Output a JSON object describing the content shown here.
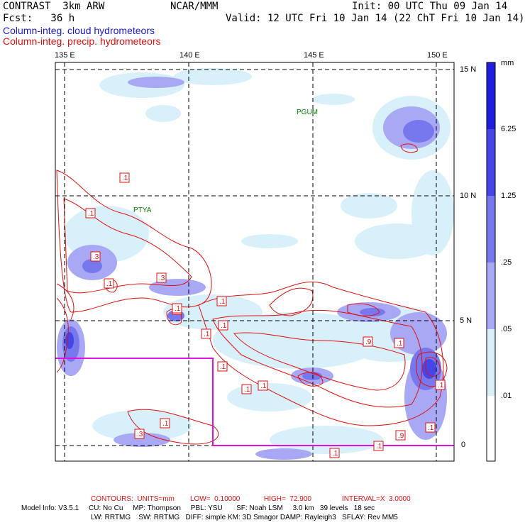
{
  "header": {
    "model_title": "CONTRAST  3km ARW",
    "org": "NCAR/MMM",
    "init": "Init: 00 UTC Thu 09 Jan 14",
    "fcst": "Fcst:   36 h",
    "valid": "Valid: 12 UTC Fri 10 Jan 14 (22 ChT Fri 10 Jan 14)",
    "field_cloud": "Column-integ. cloud hydrometeors",
    "field_precip": "Column-integ. precip. hydrometeors"
  },
  "axes": {
    "lon_labels": [
      "135 E",
      "140 E",
      "145 E",
      "150 E"
    ],
    "lat_labels": [
      "15 N",
      "10 N",
      "5 N",
      "0"
    ]
  },
  "stations": [
    "PGUM",
    "PTYA"
  ],
  "contour_labels": [
    ".1",
    ".1",
    ".3",
    ".1",
    ".3",
    ".1",
    ".1",
    ".1",
    ".1",
    ".1",
    ".1",
    ".1",
    ".1",
    ".9",
    ".1",
    ".1",
    ".1",
    ".3",
    ".1",
    ".9",
    ".1",
    ".1"
  ],
  "colorbar": {
    "unit": "mm",
    "labels": [
      "6.25",
      "1.25",
      ".25",
      ".05",
      ".01"
    ],
    "colors": [
      "#1e1edc",
      "#4646e6",
      "#7878ee",
      "#a8a8f4",
      "#d8f0fa",
      "#ffffff"
    ]
  },
  "footer": {
    "contours_title": "CONTOURS:  UNITS=mm",
    "low": "LOW=  0.10000",
    "high": "HIGH=  72.900",
    "interval": "INTERVAL=X  3.0000",
    "model_info_line1": "Model Info: V3.5.1     CU: No Cu     MP: Thompson     PBL: YSU       SF: Noah LSM     3.0 km   39 levels   18 sec",
    "model_info_line2": "LW: RRTMG    SW: RRTMG   DIFF: simple KM: 3D Smagor DAMP: Rayleigh3   SFLAY: Rev MM5"
  }
}
